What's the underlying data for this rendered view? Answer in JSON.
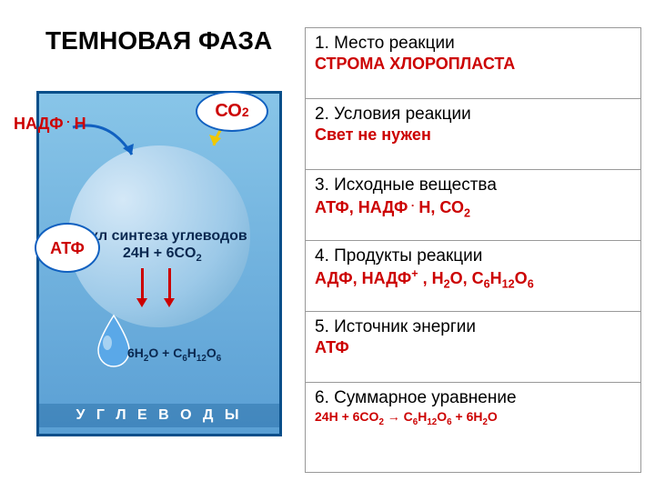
{
  "title": "ТЕМНОВАЯ ФАЗА",
  "diagram": {
    "background_gradient": [
      "#88c5e8",
      "#5a9fd4"
    ],
    "border_color": "#0a4f8a",
    "cycle_text": "Цикл синтеза углеводов",
    "cycle_formula_html": "24H + 6CO<sub>2</sub>",
    "bottom_formula_html": "6H<sub>2</sub>O + C<sub>6</sub>H<sub>12</sub>O<sub>6</sub>",
    "bottom_label": "У Г Л Е В О Д Ы",
    "arrow_color": "#cc0000",
    "text_color": "#0a2850",
    "water_drop_fill": "#5aa8e8",
    "water_drop_highlight": "#c8e4f7"
  },
  "labels": {
    "nadph_html": "НАДФ<sup> .</sup> Н",
    "co2_html": "СО<sub>2</sub>",
    "atp": "АТФ",
    "label_color": "#cc0000",
    "bubble_border": "#1060c0",
    "curve_blue": "#1060c0",
    "curve_yellow": "#f0c800"
  },
  "table": {
    "border_color": "#999999",
    "title_color": "#000000",
    "answer_color": "#cc0000",
    "title_fontsize": 19,
    "answer_fontsize": 18,
    "rows": [
      {
        "n": "1",
        "title": "Место реакции",
        "answer_html": "СТРОМА ХЛОРОПЛАСТА"
      },
      {
        "n": "2",
        "title": "Условия реакции",
        "answer_html": "Свет не нужен"
      },
      {
        "n": "3",
        "title": "Исходные вещества",
        "answer_html": "АТФ, НАДФ<sup> .</sup> Н, СО<sub>2</sub>"
      },
      {
        "n": "4",
        "title": "Продукты реакции",
        "answer_html": "АДФ, НАДФ<sup>+</sup> , Н<sub>2</sub>О, С<sub>6</sub>Н<sub>12</sub>О<sub>6</sub>"
      },
      {
        "n": "5",
        "title": "Источник энергии",
        "answer_html": "АТФ"
      },
      {
        "n": "6",
        "title": "Суммарное уравнение",
        "answer_html": "24H + 6CO<sub>2</sub> → C<sub>6</sub>H<sub>12</sub>O<sub>6</sub> + 6H<sub>2</sub>O",
        "small": true
      }
    ]
  }
}
